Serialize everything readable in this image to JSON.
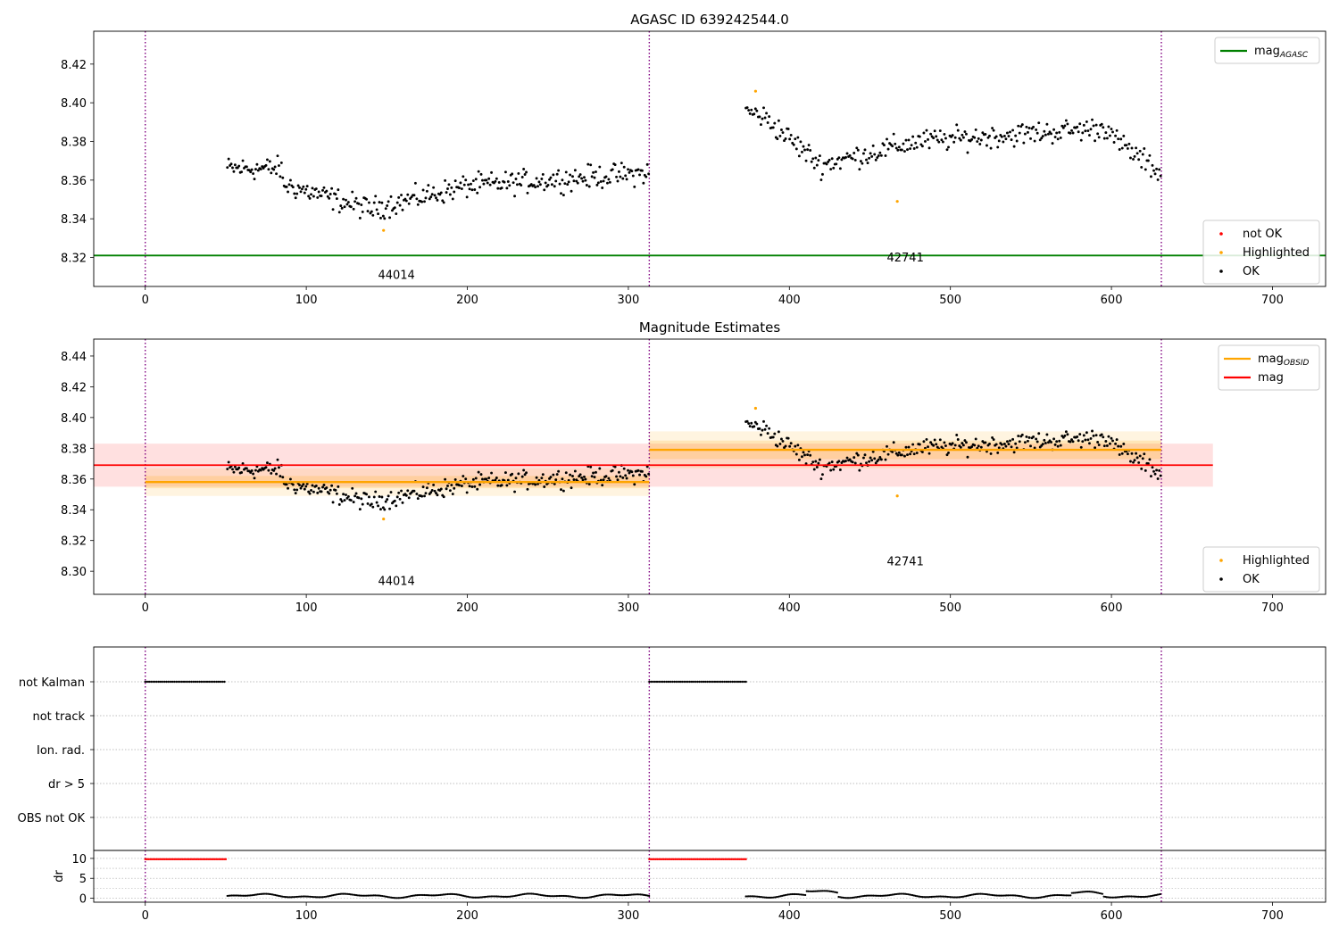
{
  "chart_data": [
    {
      "type": "scatter",
      "title": "AGASC ID 639242544.0",
      "xlim": [
        -32,
        733
      ],
      "ylim": [
        8.305,
        8.437
      ],
      "xticks": [
        0,
        100,
        200,
        300,
        400,
        500,
        600,
        700
      ],
      "yticks": [
        8.32,
        8.34,
        8.36,
        8.38,
        8.4,
        8.42
      ],
      "ytick_decimals": 2,
      "obs_boundaries": [
        0,
        313,
        631
      ],
      "obsids": [
        {
          "label": "44014",
          "x": 156,
          "y": 8.309
        },
        {
          "label": "42741",
          "x": 472,
          "y": 8.318
        }
      ],
      "lines": [
        {
          "name": "mag_AGASC",
          "y": 8.321,
          "x0": -32,
          "x1": 733,
          "color": "#008000"
        }
      ],
      "highlighted": [
        [
          148,
          8.334
        ],
        [
          379,
          8.406
        ],
        [
          467,
          8.349
        ]
      ],
      "legend_top": [
        {
          "label": "mag",
          "sub": "AGASC",
          "color": "#008000",
          "kind": "line"
        }
      ],
      "legend_bottom": [
        {
          "label": "not OK",
          "color": "#ff0000",
          "kind": "dot"
        },
        {
          "label": "Highlighted",
          "color": "#ffa500",
          "kind": "dot"
        },
        {
          "label": "OK",
          "color": "#000000",
          "kind": "dot"
        }
      ]
    },
    {
      "type": "scatter",
      "title": "Magnitude Estimates",
      "xlim": [
        -32,
        733
      ],
      "ylim": [
        8.285,
        8.451
      ],
      "xticks": [
        0,
        100,
        200,
        300,
        400,
        500,
        600,
        700
      ],
      "yticks": [
        8.3,
        8.32,
        8.34,
        8.36,
        8.38,
        8.4,
        8.42,
        8.44
      ],
      "ytick_decimals": 2,
      "obs_boundaries": [
        0,
        313,
        631
      ],
      "obsids": [
        {
          "label": "44014",
          "x": 156,
          "y": 8.291
        },
        {
          "label": "42741",
          "x": 472,
          "y": 8.304
        }
      ],
      "mag": {
        "y": 8.369,
        "band": [
          8.355,
          8.383
        ],
        "x0": -32,
        "x1": 663
      },
      "mag_obsid": [
        {
          "x0": 0,
          "x1": 313,
          "y": 8.358,
          "band1": [
            8.354,
            8.362
          ],
          "band2": [
            8.349,
            8.367
          ]
        },
        {
          "x0": 313,
          "x1": 631,
          "y": 8.379,
          "band1": [
            8.373,
            8.385
          ],
          "band2": [
            8.367,
            8.391
          ]
        }
      ],
      "highlighted": [
        [
          148,
          8.334
        ],
        [
          379,
          8.406
        ],
        [
          467,
          8.349
        ]
      ],
      "legend_top": [
        {
          "label": "mag",
          "sub": "OBSID",
          "color": "#ffa500",
          "kind": "line"
        },
        {
          "label": "mag",
          "sub": "",
          "color": "#ff0000",
          "kind": "line"
        }
      ],
      "legend_bottom": [
        {
          "label": "Highlighted",
          "color": "#ffa500",
          "kind": "dot"
        },
        {
          "label": "OK",
          "color": "#000000",
          "kind": "dot"
        }
      ]
    },
    {
      "type": "scatter",
      "xlim": [
        -32,
        733
      ],
      "xticks": [
        0,
        100,
        200,
        300,
        400,
        500,
        600,
        700
      ],
      "obs_boundaries": [
        0,
        313,
        631
      ],
      "flags": [
        "not Kalman",
        "not track",
        "Ion. rad.",
        "dr > 5",
        "OBS not OK"
      ],
      "not_kalman_ranges": [
        [
          0,
          50
        ],
        [
          313,
          373
        ]
      ],
      "dr": {
        "ylabel": "dr",
        "ylim": [
          -1,
          12
        ],
        "yticks": [
          0,
          5,
          10
        ],
        "high_ranges": [
          [
            0,
            50
          ],
          [
            313,
            373
          ]
        ],
        "high_value": 9.8
      }
    }
  ],
  "series_color": {
    "ok": "#000000",
    "highlighted": "#ffa500",
    "not_ok": "#ff0000",
    "boundary": "#800080"
  }
}
